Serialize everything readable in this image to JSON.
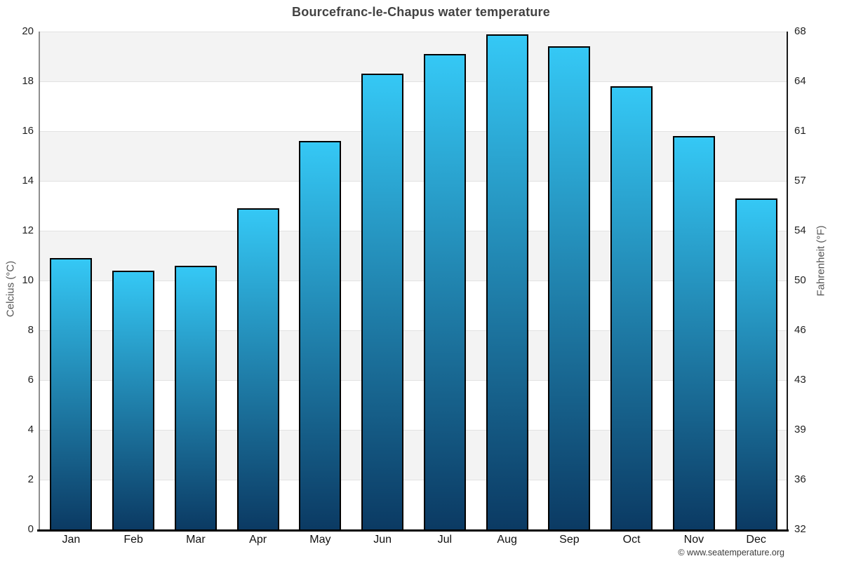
{
  "chart_data": {
    "type": "bar",
    "title": "Bourcefranc-le-Chapus water temperature",
    "categories": [
      "Jan",
      "Feb",
      "Mar",
      "Apr",
      "May",
      "Jun",
      "Jul",
      "Aug",
      "Sep",
      "Oct",
      "Nov",
      "Dec"
    ],
    "values": [
      10.9,
      10.4,
      10.6,
      12.9,
      15.6,
      18.3,
      19.1,
      19.9,
      19.4,
      17.8,
      15.8,
      13.3
    ],
    "ylabel": "Celcius (°C)",
    "ylabel_right": "Fahrenheit (°F)",
    "xlabel": "",
    "ylim": [
      0,
      20
    ],
    "yticks_celsius": [
      0,
      2,
      4,
      6,
      8,
      10,
      12,
      14,
      16,
      18,
      20
    ],
    "yticks_fahrenheit": [
      32,
      36,
      39,
      43,
      46,
      50,
      54,
      57,
      61,
      64,
      68
    ],
    "legend": "none",
    "grid": "alternating horizontal bands every 2°C, gray topmost",
    "colors": {
      "bar_gradient_top": "#35c8f5",
      "bar_gradient_bottom": "#0b3a63",
      "bar_border": "#000000",
      "band_gray": "#f3f3f3",
      "band_white": "#ffffff",
      "gridline": "#e2e2e2",
      "left_axis": "#8f8f8f",
      "right_axis": "#1a1a1a",
      "bottom_axis": "#000000",
      "title_text": "#424242",
      "tick_text": "#222222",
      "axis_title_text": "#555555"
    }
  },
  "footer": {
    "copyright": "© www.seatemperature.org"
  }
}
